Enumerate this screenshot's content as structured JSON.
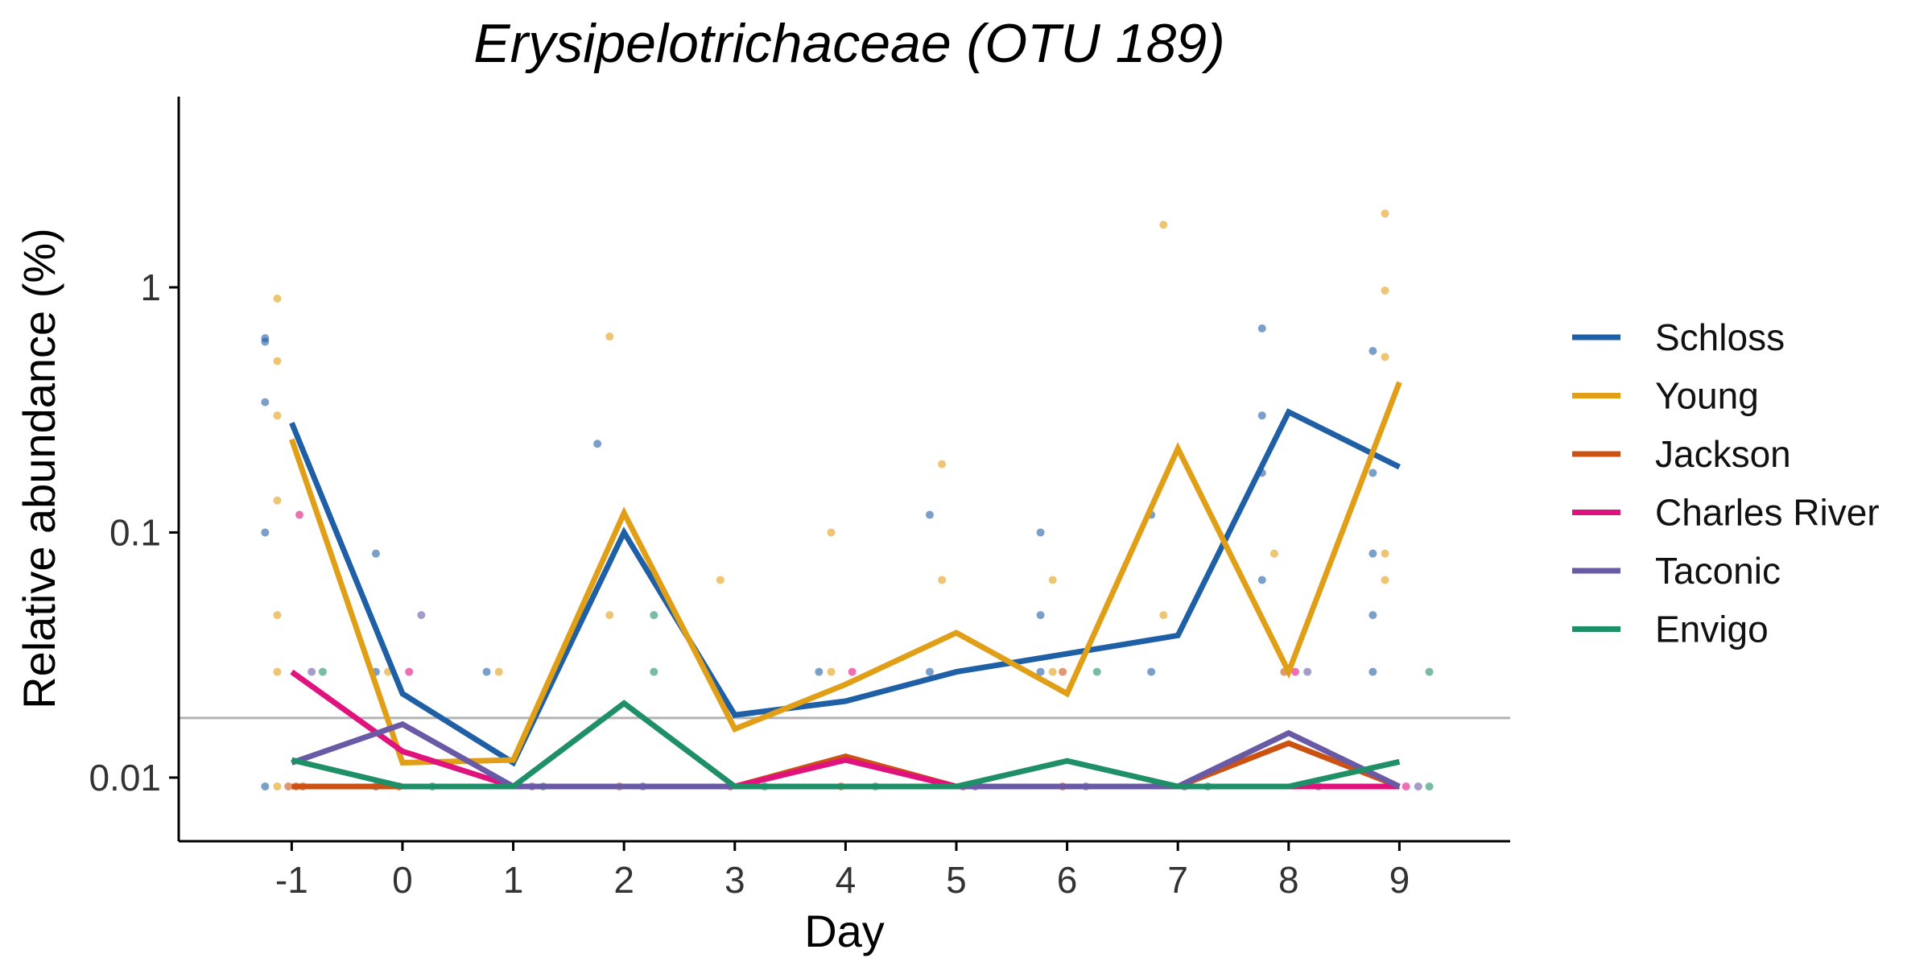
{
  "chart_data": {
    "type": "line",
    "title": "Erysipelotrichaceae (OTU 189)",
    "xlabel": "Day",
    "ylabel": "Relative abundance (%)",
    "x": [
      -1,
      0,
      1,
      2,
      3,
      4,
      5,
      6,
      7,
      8,
      9
    ],
    "x_tick_labels": [
      "-1",
      "0",
      "1",
      "2",
      "3",
      "4",
      "5",
      "6",
      "7",
      "8",
      "9"
    ],
    "xlim": [
      -2.02,
      10.0
    ],
    "y_scale": "log10",
    "ylim": [
      0.0055,
      6.0
    ],
    "y_ticks": [
      0.01,
      0.1,
      1
    ],
    "y_tick_labels": [
      "0.01",
      "0.1",
      "1"
    ],
    "limit_of_detection": 0.0175,
    "grid": false,
    "legend_position": "right",
    "series": [
      {
        "name": "Schloss",
        "color": "#1f5fa6",
        "values": [
          0.28,
          0.022,
          0.0115,
          0.1,
          0.018,
          0.0205,
          0.027,
          0.032,
          0.038,
          0.31,
          0.185
        ]
      },
      {
        "name": "Young",
        "color": "#e19f17",
        "values": [
          0.24,
          0.0115,
          0.0118,
          0.12,
          0.0158,
          0.024,
          0.039,
          0.022,
          0.22,
          0.027,
          0.41
        ]
      },
      {
        "name": "Jackson",
        "color": "#cc5214",
        "values": [
          0.0092,
          0.0092,
          0.0092,
          0.0092,
          0.0092,
          0.0122,
          0.0092,
          0.0092,
          0.0092,
          0.0138,
          0.0092
        ]
      },
      {
        "name": "Charles River",
        "color": "#e0137e",
        "values": [
          0.027,
          0.0128,
          0.0092,
          0.0092,
          0.0092,
          0.0118,
          0.0092,
          0.0092,
          0.0092,
          0.0092,
          0.0092
        ]
      },
      {
        "name": "Taconic",
        "color": "#6a5aa6",
        "values": [
          0.0115,
          0.0165,
          0.0092,
          0.0092,
          0.0092,
          0.0092,
          0.0092,
          0.0092,
          0.0092,
          0.0152,
          0.0092
        ]
      },
      {
        "name": "Envigo",
        "color": "#1e8f66",
        "values": [
          0.0118,
          0.0092,
          0.0092,
          0.0201,
          0.0092,
          0.0092,
          0.0092,
          0.0117,
          0.0092,
          0.0092,
          0.0116
        ]
      }
    ],
    "points": [
      {
        "series": "Schloss",
        "x": -1.24,
        "y": 0.62
      },
      {
        "series": "Schloss",
        "x": -1.24,
        "y": 0.6
      },
      {
        "series": "Schloss",
        "x": -1.24,
        "y": 0.34
      },
      {
        "series": "Schloss",
        "x": -1.24,
        "y": 0.1
      },
      {
        "series": "Young",
        "x": -1.13,
        "y": 0.9
      },
      {
        "series": "Young",
        "x": -1.13,
        "y": 0.5
      },
      {
        "series": "Young",
        "x": -1.13,
        "y": 0.3
      },
      {
        "series": "Young",
        "x": -1.13,
        "y": 0.135
      },
      {
        "series": "Young",
        "x": -1.13,
        "y": 0.046
      },
      {
        "series": "Young",
        "x": -1.13,
        "y": 0.027
      },
      {
        "series": "Charles River",
        "x": -0.93,
        "y": 0.118
      },
      {
        "series": "Taconic",
        "x": -0.82,
        "y": 0.027
      },
      {
        "series": "Envigo",
        "x": -0.72,
        "y": 0.027
      },
      {
        "series": "Schloss",
        "x": -0.24,
        "y": 0.082
      },
      {
        "series": "Schloss",
        "x": -0.24,
        "y": 0.027
      },
      {
        "series": "Young",
        "x": -0.13,
        "y": 0.027
      },
      {
        "series": "Charles River",
        "x": 0.06,
        "y": 0.027
      },
      {
        "series": "Taconic",
        "x": 0.17,
        "y": 0.046
      },
      {
        "series": "Schloss",
        "x": 0.76,
        "y": 0.027
      },
      {
        "series": "Young",
        "x": 0.87,
        "y": 0.027
      },
      {
        "series": "Schloss",
        "x": 1.76,
        "y": 0.23
      },
      {
        "series": "Young",
        "x": 1.87,
        "y": 0.63
      },
      {
        "series": "Young",
        "x": 1.87,
        "y": 0.046
      },
      {
        "series": "Envigo",
        "x": 2.27,
        "y": 0.046
      },
      {
        "series": "Envigo",
        "x": 2.27,
        "y": 0.027
      },
      {
        "series": "Young",
        "x": 2.87,
        "y": 0.064
      },
      {
        "series": "Schloss",
        "x": 3.76,
        "y": 0.027
      },
      {
        "series": "Young",
        "x": 3.87,
        "y": 0.1
      },
      {
        "series": "Young",
        "x": 3.87,
        "y": 0.027
      },
      {
        "series": "Charles River",
        "x": 4.06,
        "y": 0.027
      },
      {
        "series": "Schloss",
        "x": 4.76,
        "y": 0.118
      },
      {
        "series": "Schloss",
        "x": 4.76,
        "y": 0.027
      },
      {
        "series": "Young",
        "x": 4.87,
        "y": 0.19
      },
      {
        "series": "Young",
        "x": 4.87,
        "y": 0.064
      },
      {
        "series": "Schloss",
        "x": 5.76,
        "y": 0.1
      },
      {
        "series": "Schloss",
        "x": 5.76,
        "y": 0.046
      },
      {
        "series": "Schloss",
        "x": 5.76,
        "y": 0.027
      },
      {
        "series": "Young",
        "x": 5.87,
        "y": 0.064
      },
      {
        "series": "Young",
        "x": 5.87,
        "y": 0.027
      },
      {
        "series": "Jackson",
        "x": 5.96,
        "y": 0.027
      },
      {
        "series": "Envigo",
        "x": 6.27,
        "y": 0.027
      },
      {
        "series": "Schloss",
        "x": 6.76,
        "y": 0.118
      },
      {
        "series": "Schloss",
        "x": 6.76,
        "y": 0.027
      },
      {
        "series": "Young",
        "x": 6.87,
        "y": 1.8
      },
      {
        "series": "Young",
        "x": 6.87,
        "y": 0.046
      },
      {
        "series": "Schloss",
        "x": 7.76,
        "y": 0.68
      },
      {
        "series": "Schloss",
        "x": 7.76,
        "y": 0.3
      },
      {
        "series": "Schloss",
        "x": 7.76,
        "y": 0.175
      },
      {
        "series": "Schloss",
        "x": 7.76,
        "y": 0.064
      },
      {
        "series": "Young",
        "x": 7.87,
        "y": 0.082
      },
      {
        "series": "Jackson",
        "x": 7.96,
        "y": 0.027
      },
      {
        "series": "Charles River",
        "x": 8.06,
        "y": 0.027
      },
      {
        "series": "Taconic",
        "x": 8.17,
        "y": 0.027
      },
      {
        "series": "Schloss",
        "x": 8.76,
        "y": 0.55
      },
      {
        "series": "Schloss",
        "x": 8.76,
        "y": 0.175
      },
      {
        "series": "Schloss",
        "x": 8.76,
        "y": 0.082
      },
      {
        "series": "Schloss",
        "x": 8.76,
        "y": 0.046
      },
      {
        "series": "Schloss",
        "x": 8.76,
        "y": 0.027
      },
      {
        "series": "Young",
        "x": 8.87,
        "y": 2.0
      },
      {
        "series": "Young",
        "x": 8.87,
        "y": 0.97
      },
      {
        "series": "Young",
        "x": 8.87,
        "y": 0.52
      },
      {
        "series": "Young",
        "x": 8.87,
        "y": 0.082
      },
      {
        "series": "Young",
        "x": 8.87,
        "y": 0.064
      },
      {
        "series": "Envigo",
        "x": 9.27,
        "y": 0.027
      }
    ],
    "below_detection_points": [
      {
        "series": "Schloss",
        "x": -1.24,
        "y": 0.0092
      },
      {
        "series": "Young",
        "x": -1.13,
        "y": 0.0092
      },
      {
        "series": "Jackson",
        "x": -1.03,
        "y": 0.0092
      },
      {
        "series": "Jackson",
        "x": -0.96,
        "y": 0.0092
      },
      {
        "series": "Jackson",
        "x": -0.9,
        "y": 0.0092
      },
      {
        "series": "Schloss",
        "x": -0.24,
        "y": 0.0092
      },
      {
        "series": "Jackson",
        "x": -0.03,
        "y": 0.0092
      },
      {
        "series": "Envigo",
        "x": 0.27,
        "y": 0.0092
      },
      {
        "series": "Taconic",
        "x": 1.17,
        "y": 0.0092
      },
      {
        "series": "Envigo",
        "x": 1.27,
        "y": 0.0092
      },
      {
        "series": "Jackson",
        "x": 1.96,
        "y": 0.0092
      },
      {
        "series": "Taconic",
        "x": 2.17,
        "y": 0.0092
      },
      {
        "series": "Jackson",
        "x": 2.96,
        "y": 0.0092
      },
      {
        "series": "Envigo",
        "x": 3.27,
        "y": 0.0092
      },
      {
        "series": "Jackson",
        "x": 3.96,
        "y": 0.0092
      },
      {
        "series": "Envigo",
        "x": 4.27,
        "y": 0.0092
      },
      {
        "series": "Charles River",
        "x": 5.06,
        "y": 0.0092
      },
      {
        "series": "Taconic",
        "x": 5.17,
        "y": 0.0092
      },
      {
        "series": "Jackson",
        "x": 5.96,
        "y": 0.0092
      },
      {
        "series": "Taconic",
        "x": 6.17,
        "y": 0.0092
      },
      {
        "series": "Charles River",
        "x": 7.06,
        "y": 0.0092
      },
      {
        "series": "Envigo",
        "x": 7.27,
        "y": 0.0092
      },
      {
        "series": "Envigo",
        "x": 8.27,
        "y": 0.0092
      },
      {
        "series": "Charles River",
        "x": 9.06,
        "y": 0.0092
      },
      {
        "series": "Taconic",
        "x": 9.17,
        "y": 0.0092
      },
      {
        "series": "Envigo",
        "x": 9.27,
        "y": 0.0092
      }
    ]
  }
}
